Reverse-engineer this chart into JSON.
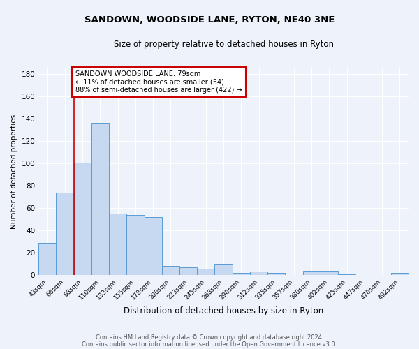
{
  "title": "SANDOWN, WOODSIDE LANE, RYTON, NE40 3NE",
  "subtitle": "Size of property relative to detached houses in Ryton",
  "xlabel": "Distribution of detached houses by size in Ryton",
  "ylabel": "Number of detached properties",
  "categories": [
    "43sqm",
    "66sqm",
    "88sqm",
    "110sqm",
    "133sqm",
    "155sqm",
    "178sqm",
    "200sqm",
    "223sqm",
    "245sqm",
    "268sqm",
    "290sqm",
    "312sqm",
    "335sqm",
    "357sqm",
    "380sqm",
    "402sqm",
    "425sqm",
    "447sqm",
    "470sqm",
    "492sqm"
  ],
  "values": [
    29,
    74,
    101,
    136,
    55,
    54,
    52,
    8,
    7,
    6,
    10,
    2,
    3,
    2,
    0,
    4,
    4,
    1,
    0,
    0,
    2
  ],
  "bar_color": "#c7d9f0",
  "bar_edge_color": "#5b9bd5",
  "background_color": "#eef2fa",
  "grid_color": "#ffffff",
  "redline_x": 1.5,
  "annotation_text": "SANDOWN WOODSIDE LANE: 79sqm\n← 11% of detached houses are smaller (54)\n88% of semi-detached houses are larger (422) →",
  "annotation_box_color": "#ffffff",
  "annotation_box_edge": "#cc0000",
  "footer1": "Contains HM Land Registry data © Crown copyright and database right 2024.",
  "footer2": "Contains public sector information licensed under the Open Government Licence v3.0.",
  "ylim": [
    0,
    185
  ],
  "yticks": [
    0,
    20,
    40,
    60,
    80,
    100,
    120,
    140,
    160,
    180
  ]
}
